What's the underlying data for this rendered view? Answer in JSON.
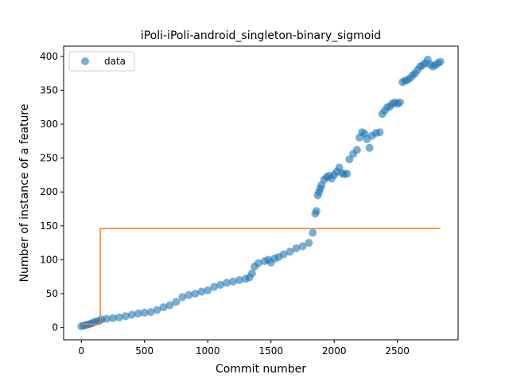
{
  "chart_data": {
    "type": "scatter",
    "title": "iPoli-iPoli-android_singleton-binary_sigmoid",
    "xlabel": "Commit number",
    "ylabel": "Number of instance of a feature",
    "xlim": [
      -140,
      2980
    ],
    "ylim": [
      -18,
      415
    ],
    "x_ticks": [
      0,
      500,
      1000,
      1500,
      2000,
      2500
    ],
    "y_ticks": [
      0,
      50,
      100,
      150,
      200,
      250,
      300,
      350,
      400
    ],
    "grid": false,
    "legend": {
      "position": "top-left",
      "entries": [
        "data"
      ]
    },
    "series": [
      {
        "name": "data",
        "kind": "scatter",
        "color": "#1f77b4",
        "x": [
          0,
          20,
          40,
          60,
          80,
          100,
          120,
          140,
          160,
          200,
          250,
          300,
          350,
          400,
          450,
          500,
          550,
          600,
          650,
          700,
          750,
          800,
          850,
          900,
          950,
          1000,
          1050,
          1100,
          1150,
          1200,
          1250,
          1300,
          1330,
          1350,
          1370,
          1400,
          1450,
          1480,
          1500,
          1530,
          1560,
          1600,
          1650,
          1700,
          1750,
          1800,
          1830,
          1850,
          1860,
          1870,
          1880,
          1890,
          1900,
          1920,
          1940,
          1960,
          1980,
          2000,
          2020,
          2040,
          2060,
          2080,
          2100,
          2120,
          2150,
          2180,
          2200,
          2220,
          2240,
          2260,
          2280,
          2300,
          2330,
          2360,
          2380,
          2400,
          2420,
          2440,
          2460,
          2480,
          2500,
          2520,
          2540,
          2560,
          2580,
          2600,
          2620,
          2640,
          2660,
          2680,
          2700,
          2720,
          2740,
          2760,
          2780,
          2800,
          2820,
          2840
        ],
        "y": [
          2,
          3,
          4,
          5,
          6,
          8,
          9,
          10,
          12,
          13,
          14,
          15,
          17,
          19,
          21,
          22,
          23,
          26,
          30,
          33,
          38,
          45,
          48,
          50,
          53,
          55,
          60,
          63,
          66,
          68,
          70,
          72,
          74,
          80,
          90,
          95,
          98,
          100,
          96,
          102,
          104,
          108,
          112,
          117,
          120,
          125,
          140,
          168,
          172,
          195,
          200,
          205,
          210,
          218,
          222,
          224,
          220,
          225,
          230,
          236,
          228,
          226,
          227,
          248,
          256,
          262,
          280,
          288,
          286,
          278,
          265,
          283,
          287,
          288,
          315,
          320,
          325,
          326,
          330,
          332,
          330,
          332,
          362,
          364,
          365,
          368,
          372,
          375,
          380,
          385,
          387,
          390,
          395,
          388,
          385,
          387,
          390,
          392
        ]
      },
      {
        "name": "",
        "kind": "line",
        "color": "#ff7f0e",
        "x": [
          0,
          150,
          150,
          2840
        ],
        "y": [
          5,
          5,
          146,
          146
        ]
      }
    ]
  }
}
